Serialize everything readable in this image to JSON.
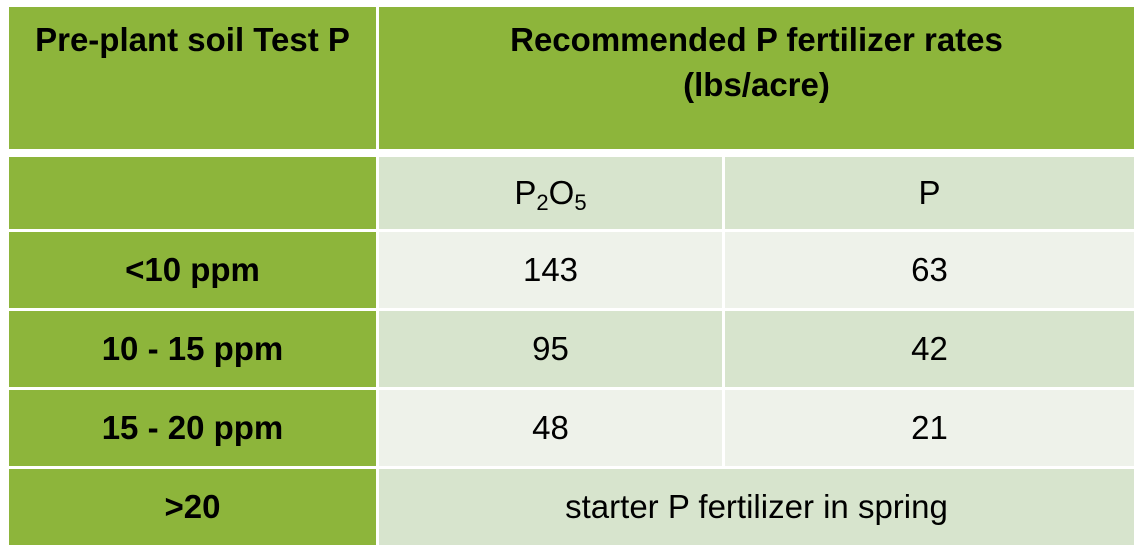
{
  "table": {
    "header": {
      "col1": "Pre-plant soil Test P",
      "col2": "Recommended P fertilizer rates (lbs/acre)"
    },
    "subheader": {
      "blank": "",
      "p2o5": {
        "p": "P",
        "two": "2",
        "o": "O",
        "five": "5"
      },
      "p": "P"
    },
    "rows": [
      {
        "label": "<10 ppm",
        "p2o5": "143",
        "p": "63"
      },
      {
        "label": "10 - 15 ppm",
        "p2o5": "95",
        "p": "42"
      },
      {
        "label": "15 - 20 ppm",
        "p2o5": "48",
        "p": "21"
      }
    ],
    "last_row": {
      "label": ">20",
      "value": "starter P fertilizer in spring"
    },
    "colors": {
      "header_green": "#8db53b",
      "shade_dark": "#d7e4cd",
      "shade_light": "#eef2ea"
    }
  }
}
